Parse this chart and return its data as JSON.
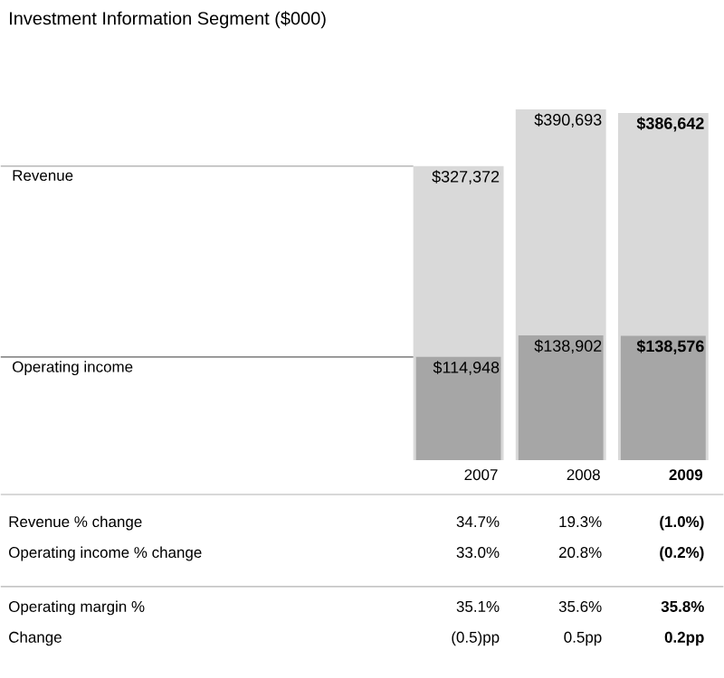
{
  "chart_data": {
    "type": "bar",
    "title": "Investment Information Segment ($000)",
    "categories": [
      "2007",
      "2008",
      "2009"
    ],
    "series": [
      {
        "name": "Revenue",
        "color": "#d9d9d9",
        "values": [
          327372,
          390693,
          386642
        ],
        "value_labels": [
          "$327,372",
          "$390,693",
          "$386,642"
        ]
      },
      {
        "name": "Operating income",
        "color": "#a6a6a6",
        "values": [
          114948,
          138902,
          138576
        ],
        "value_labels": [
          "$114,948",
          "$138,902",
          "$138,576"
        ]
      }
    ],
    "legend": false,
    "annotations": [
      "Revenue % change",
      "34.7%",
      "19.3%",
      "(1.0%)",
      "Operating income % change",
      "33.0%",
      "20.8%",
      "(0.2%)",
      "Operating margin %",
      "35.1%",
      "35.6%",
      "35.8%",
      "Change",
      "(0.5)pp",
      "0.5pp",
      "0.2pp"
    ]
  }
}
